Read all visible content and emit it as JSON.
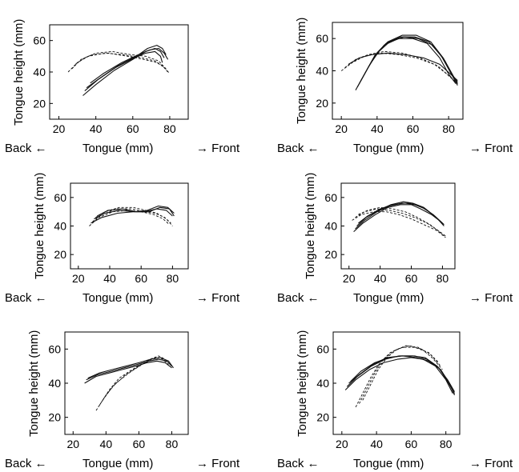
{
  "chart_data": [
    {
      "type": "line",
      "xlabel": "Tongue (mm)",
      "ylabel": "Tongue height (mm)",
      "direction_left": "Back ←",
      "direction_right": "→ Front",
      "xlim": [
        15,
        90
      ],
      "ylim": [
        10,
        70
      ],
      "xticks": [
        20,
        40,
        60,
        80
      ],
      "yticks": [
        20,
        40,
        60
      ],
      "series": [
        {
          "style": "solid",
          "x": [
            33,
            40,
            50,
            60,
            67,
            72,
            75,
            77
          ],
          "y": [
            25,
            32,
            41,
            48,
            53,
            55,
            53,
            49
          ]
        },
        {
          "style": "solid",
          "x": [
            35,
            42,
            52,
            62,
            68,
            73,
            76,
            78
          ],
          "y": [
            30,
            36,
            44,
            50,
            55,
            57,
            55,
            51
          ]
        },
        {
          "style": "solid",
          "x": [
            37,
            44,
            54,
            63,
            69,
            74,
            77,
            79
          ],
          "y": [
            33,
            39,
            46,
            51,
            54,
            55,
            52,
            48
          ]
        },
        {
          "style": "solid",
          "x": [
            34,
            41,
            51,
            61,
            67,
            72,
            75,
            76
          ],
          "y": [
            28,
            35,
            43,
            49,
            52,
            53,
            50,
            46
          ]
        },
        {
          "style": "dashed",
          "x": [
            25,
            30,
            36,
            45,
            55,
            65,
            72,
            76,
            79
          ],
          "y": [
            40,
            46,
            50,
            52,
            51,
            49,
            47,
            44,
            40
          ]
        },
        {
          "style": "dashed",
          "x": [
            27,
            32,
            38,
            47,
            57,
            66,
            73,
            77,
            80
          ],
          "y": [
            42,
            48,
            51,
            52,
            50,
            48,
            46,
            43,
            39
          ]
        },
        {
          "style": "dashed",
          "x": [
            29,
            34,
            40,
            49,
            59,
            67,
            74,
            78
          ],
          "y": [
            45,
            49,
            52,
            53,
            51,
            50,
            47,
            42
          ]
        }
      ]
    },
    {
      "type": "line",
      "xlabel": "Tongue (mm)",
      "ylabel": "Tongue height (mm)",
      "direction_left": "Back ←",
      "direction_right": "→ Front",
      "xlim": [
        15,
        88
      ],
      "ylim": [
        10,
        70
      ],
      "xticks": [
        20,
        40,
        60,
        80
      ],
      "yticks": [
        20,
        40,
        60
      ],
      "series": [
        {
          "style": "solid",
          "x": [
            28,
            33,
            38,
            44,
            52,
            60,
            68,
            75,
            80,
            84
          ],
          "y": [
            28,
            38,
            48,
            56,
            60,
            60,
            57,
            48,
            38,
            32
          ]
        },
        {
          "style": "solid",
          "x": [
            29,
            34,
            39,
            45,
            53,
            61,
            69,
            76,
            81,
            85
          ],
          "y": [
            30,
            40,
            50,
            57,
            61,
            61,
            58,
            49,
            39,
            33
          ]
        },
        {
          "style": "solid",
          "x": [
            30,
            35,
            40,
            46,
            54,
            62,
            70,
            77,
            82,
            85
          ],
          "y": [
            32,
            42,
            51,
            58,
            62,
            62,
            58,
            48,
            38,
            32
          ]
        },
        {
          "style": "solid",
          "x": [
            31,
            36,
            41,
            47,
            55,
            63,
            71,
            78,
            82,
            85
          ],
          "y": [
            34,
            44,
            52,
            58,
            61,
            60,
            56,
            46,
            37,
            31
          ]
        },
        {
          "style": "dashed",
          "x": [
            20,
            26,
            33,
            42,
            52,
            62,
            72,
            79,
            84
          ],
          "y": [
            40,
            45,
            49,
            51,
            50,
            48,
            44,
            38,
            33
          ]
        },
        {
          "style": "dashed",
          "x": [
            22,
            28,
            35,
            44,
            54,
            64,
            74,
            80,
            85
          ],
          "y": [
            42,
            47,
            50,
            52,
            51,
            48,
            43,
            37,
            32
          ]
        },
        {
          "style": "solid",
          "x": [
            24,
            30,
            37,
            46,
            56,
            66,
            75,
            81,
            85
          ],
          "y": [
            44,
            48,
            50,
            51,
            50,
            48,
            44,
            38,
            34
          ]
        }
      ]
    },
    {
      "type": "line",
      "xlabel": "Tongue (mm)",
      "ylabel": "Tongue height (mm)",
      "direction_left": "Back ←",
      "direction_right": "→ Front",
      "xlim": [
        15,
        90
      ],
      "ylim": [
        10,
        70
      ],
      "xticks": [
        20,
        40,
        60,
        80
      ],
      "yticks": [
        20,
        40,
        60
      ],
      "series": [
        {
          "style": "solid",
          "x": [
            28,
            35,
            45,
            55,
            62,
            70,
            76,
            80
          ],
          "y": [
            42,
            46,
            49,
            50,
            50,
            52,
            51,
            47
          ]
        },
        {
          "style": "solid",
          "x": [
            30,
            37,
            46,
            56,
            64,
            71,
            77,
            81
          ],
          "y": [
            45,
            49,
            51,
            50,
            51,
            54,
            53,
            49
          ]
        },
        {
          "style": "solid",
          "x": [
            32,
            39,
            48,
            57,
            65,
            72,
            78,
            81
          ],
          "y": [
            47,
            51,
            52,
            50,
            50,
            53,
            52,
            47
          ]
        },
        {
          "style": "dashed",
          "x": [
            27,
            33,
            42,
            52,
            60,
            68,
            74,
            78
          ],
          "y": [
            40,
            46,
            50,
            51,
            50,
            48,
            45,
            41
          ]
        },
        {
          "style": "dashed",
          "x": [
            29,
            35,
            44,
            54,
            62,
            69,
            75,
            79
          ],
          "y": [
            43,
            48,
            52,
            52,
            50,
            49,
            46,
            42
          ]
        },
        {
          "style": "dashed",
          "x": [
            31,
            37,
            46,
            55,
            63,
            70,
            76,
            80
          ],
          "y": [
            46,
            50,
            53,
            53,
            51,
            49,
            45,
            40
          ]
        }
      ]
    },
    {
      "type": "line",
      "xlabel": "Tongue (mm)",
      "ylabel": "Tongue height (mm)",
      "direction_left": "Back ←",
      "direction_right": "→ Front",
      "xlim": [
        15,
        88
      ],
      "ylim": [
        10,
        70
      ],
      "xticks": [
        20,
        40,
        60,
        80
      ],
      "yticks": [
        20,
        40,
        60
      ],
      "series": [
        {
          "style": "solid",
          "x": [
            24,
            30,
            38,
            46,
            54,
            60,
            67,
            74,
            80
          ],
          "y": [
            38,
            44,
            50,
            54,
            56,
            56,
            53,
            48,
            42
          ]
        },
        {
          "style": "solid",
          "x": [
            25,
            31,
            39,
            47,
            55,
            61,
            68,
            75,
            81
          ],
          "y": [
            40,
            46,
            51,
            55,
            57,
            56,
            53,
            47,
            41
          ]
        },
        {
          "style": "solid",
          "x": [
            26,
            32,
            40,
            48,
            56,
            62,
            69,
            76,
            81
          ],
          "y": [
            42,
            47,
            52,
            55,
            56,
            55,
            52,
            46,
            40
          ]
        },
        {
          "style": "solid",
          "x": [
            23,
            29,
            37,
            45,
            53,
            60,
            66,
            73,
            79
          ],
          "y": [
            36,
            42,
            48,
            53,
            55,
            55,
            52,
            48,
            43
          ]
        },
        {
          "style": "dashed",
          "x": [
            22,
            28,
            36,
            44,
            52,
            60,
            68,
            76,
            82
          ],
          "y": [
            44,
            48,
            50,
            50,
            48,
            45,
            41,
            37,
            32
          ]
        },
        {
          "style": "dashed",
          "x": [
            24,
            30,
            38,
            46,
            54,
            62,
            70,
            77,
            82
          ],
          "y": [
            46,
            50,
            52,
            51,
            49,
            46,
            42,
            37,
            33
          ]
        },
        {
          "style": "dashed",
          "x": [
            26,
            32,
            40,
            48,
            56,
            64,
            72,
            78,
            82
          ],
          "y": [
            48,
            51,
            53,
            52,
            50,
            46,
            41,
            36,
            32
          ]
        }
      ]
    },
    {
      "type": "line",
      "xlabel": "Tongue (mm)",
      "ylabel": "Tongue height (mm)",
      "direction_left": "Back ←",
      "direction_right": "→ Front",
      "xlim": [
        15,
        90
      ],
      "ylim": [
        10,
        70
      ],
      "xticks": [
        20,
        40,
        60,
        80
      ],
      "yticks": [
        20,
        40,
        60
      ],
      "series": [
        {
          "style": "solid",
          "x": [
            27,
            34,
            42,
            50,
            58,
            65,
            71,
            76,
            80
          ],
          "y": [
            40,
            44,
            46,
            48,
            50,
            52,
            53,
            52,
            49
          ]
        },
        {
          "style": "solid",
          "x": [
            28,
            35,
            43,
            51,
            59,
            66,
            72,
            77,
            80
          ],
          "y": [
            42,
            45,
            47,
            49,
            51,
            53,
            54,
            53,
            50
          ]
        },
        {
          "style": "solid",
          "x": [
            29,
            36,
            44,
            52,
            60,
            67,
            73,
            78,
            81
          ],
          "y": [
            43,
            46,
            48,
            50,
            52,
            54,
            55,
            53,
            49
          ]
        },
        {
          "style": "dashed",
          "x": [
            34,
            38,
            44,
            52,
            60,
            67,
            72,
            76
          ],
          "y": [
            24,
            30,
            38,
            45,
            50,
            54,
            56,
            54
          ]
        },
        {
          "style": "dashed",
          "x": [
            36,
            40,
            46,
            54,
            62,
            68,
            73,
            77
          ],
          "y": [
            27,
            33,
            40,
            46,
            51,
            54,
            55,
            52
          ]
        },
        {
          "style": "dashed",
          "x": [
            38,
            42,
            48,
            56,
            63,
            69,
            74,
            78
          ],
          "y": [
            30,
            36,
            43,
            48,
            52,
            55,
            55,
            51
          ]
        }
      ]
    },
    {
      "type": "line",
      "xlabel": "Tongue (mm)",
      "ylabel": "Tongue height (mm)",
      "direction_left": "Back ←",
      "direction_right": "→ Front",
      "xlim": [
        15,
        88
      ],
      "ylim": [
        10,
        70
      ],
      "xticks": [
        20,
        40,
        60,
        80
      ],
      "yticks": [
        20,
        40,
        60
      ],
      "series": [
        {
          "style": "solid",
          "x": [
            22,
            28,
            36,
            44,
            52,
            60,
            67,
            74,
            80,
            84
          ],
          "y": [
            36,
            42,
            48,
            52,
            54,
            55,
            54,
            50,
            42,
            34
          ]
        },
        {
          "style": "solid",
          "x": [
            23,
            29,
            37,
            45,
            53,
            61,
            68,
            75,
            81,
            85
          ],
          "y": [
            38,
            44,
            50,
            54,
            56,
            56,
            55,
            50,
            42,
            35
          ]
        },
        {
          "style": "solid",
          "x": [
            24,
            30,
            38,
            46,
            54,
            62,
            69,
            76,
            81,
            85
          ],
          "y": [
            40,
            45,
            51,
            55,
            56,
            56,
            54,
            49,
            41,
            34
          ]
        },
        {
          "style": "solid",
          "x": [
            25,
            31,
            39,
            47,
            55,
            63,
            70,
            77,
            82,
            85
          ],
          "y": [
            41,
            47,
            52,
            55,
            56,
            55,
            53,
            48,
            40,
            33
          ]
        },
        {
          "style": "dashed",
          "x": [
            28,
            32,
            37,
            42,
            48,
            55,
            62,
            70,
            76
          ],
          "y": [
            26,
            34,
            44,
            52,
            58,
            61,
            61,
            58,
            52
          ]
        },
        {
          "style": "dashed",
          "x": [
            30,
            34,
            39,
            44,
            50,
            57,
            64,
            71,
            77
          ],
          "y": [
            28,
            36,
            46,
            54,
            59,
            62,
            61,
            57,
            50
          ]
        },
        {
          "style": "dashed",
          "x": [
            32,
            36,
            41,
            46,
            52,
            59,
            66,
            72,
            78
          ],
          "y": [
            30,
            38,
            48,
            55,
            60,
            62,
            60,
            55,
            48
          ]
        }
      ]
    }
  ]
}
